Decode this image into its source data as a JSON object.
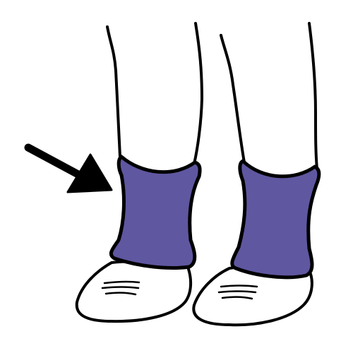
{
  "illustration": {
    "subject": "leg-warmers-pictogram",
    "colors": {
      "background": "#ffffff",
      "outline": "#000000",
      "leg_warmer": "#5f57a0",
      "shoe": "#ffffff",
      "arrow": "#000000"
    },
    "icons": {
      "pointer": "arrow-icon",
      "left_warmer": "leg-warmer-icon",
      "right_warmer": "leg-warmer-icon",
      "left_shoe": "shoe-icon",
      "right_shoe": "shoe-icon"
    }
  }
}
